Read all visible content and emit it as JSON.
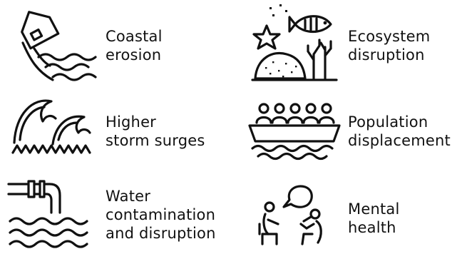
{
  "items": [
    {
      "icon": "house-falling-into-waves-icon",
      "lines": [
        "Coastal",
        "erosion"
      ]
    },
    {
      "icon": "fish-starfish-coral-icon",
      "lines": [
        "Ecosystem",
        "disruption"
      ]
    },
    {
      "icon": "big-waves-icon",
      "lines": [
        "Higher",
        "storm surges"
      ]
    },
    {
      "icon": "people-on-boat-icon",
      "lines": [
        "Population",
        "displacement"
      ]
    },
    {
      "icon": "pipes-over-water-icon",
      "lines": [
        "Water",
        "contamination",
        "and disruption"
      ]
    },
    {
      "icon": "two-people-talking-icon",
      "lines": [
        "Mental",
        "health"
      ]
    }
  ],
  "colors": {
    "ink": "#111111",
    "background": "#ffffff"
  }
}
